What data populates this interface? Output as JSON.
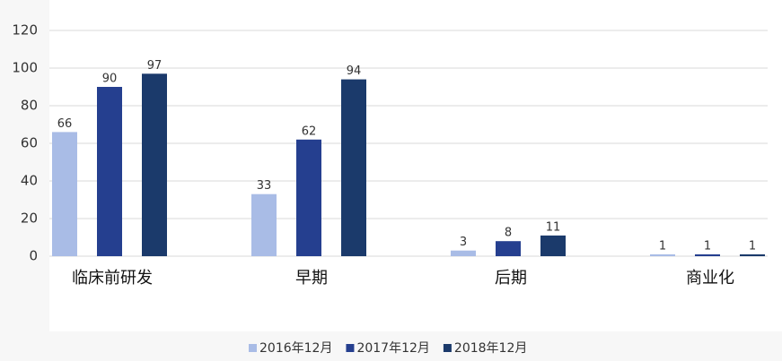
{
  "chart_data": {
    "type": "bar",
    "categories": [
      "临床前研发",
      "早期",
      "后期",
      "商业化"
    ],
    "series": [
      {
        "name": "2016年12月",
        "color": "#a9bce6",
        "values": [
          66,
          33,
          3,
          1
        ]
      },
      {
        "name": "2017年12月",
        "color": "#253f8f",
        "values": [
          90,
          62,
          8,
          1
        ]
      },
      {
        "name": "2018年12月",
        "color": "#1b3a6b",
        "values": [
          97,
          94,
          11,
          1
        ]
      }
    ],
    "ylim": [
      0,
      120
    ],
    "yticks": [
      0,
      20,
      40,
      60,
      80,
      100,
      120
    ],
    "grid": true,
    "legend": "bottom"
  }
}
